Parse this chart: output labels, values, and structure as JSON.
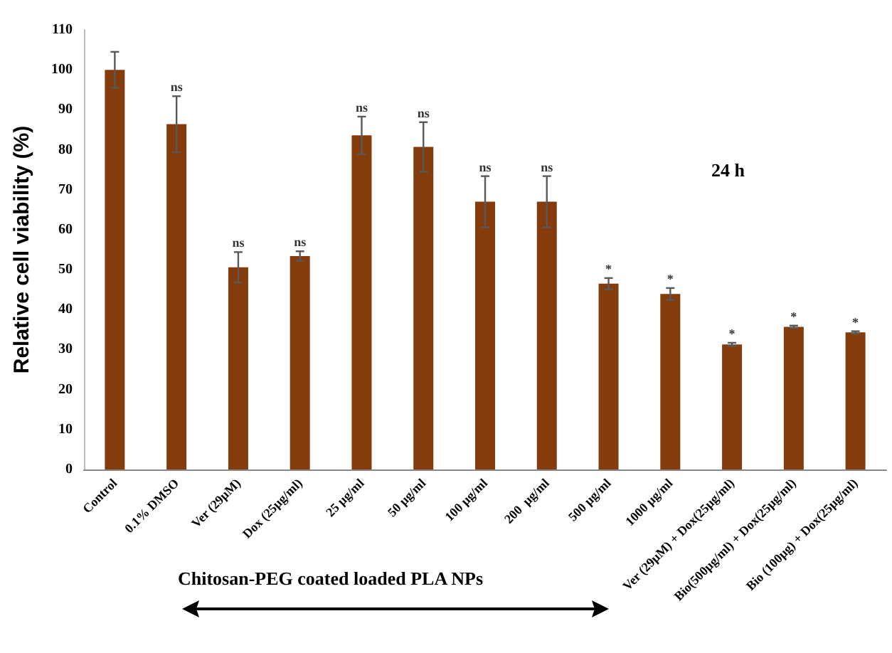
{
  "chart_data": {
    "type": "bar",
    "ylabel": "Relative cell viability (%)",
    "xlabel": "Chitosan-PEG coated loaded PLA NPs",
    "categories": [
      "Control",
      "0.1% DMSO",
      "Ver (29µM)",
      "Dox (25µg/ml)",
      "25 µg/ml",
      "50 µg/ml",
      "100 µg/ml",
      "200  µg/ml",
      "500 µg/ml",
      "1000 µg/ml",
      "Ver (29µM) + Dox(25µg/ml)",
      "Bio(500µg/ml) + Dox(25µg/ml)",
      "Bio (100µg) + Dox(25µg/ml)"
    ],
    "values": [
      100,
      86.4,
      50.6,
      53.4,
      83.6,
      80.7,
      67.0,
      67.0,
      46.5,
      43.9,
      31.3,
      35.7,
      34.3
    ],
    "errors": [
      4.5,
      7,
      3.8,
      1.2,
      4.7,
      6.2,
      6.4,
      6.4,
      1.4,
      1.5,
      0.4,
      0.3,
      0.3
    ],
    "color": "#843c0c",
    "ylim": [
      0,
      110
    ],
    "yticks": [
      0,
      10,
      20,
      30,
      40,
      50,
      60,
      70,
      80,
      90,
      100,
      110
    ],
    "annotations": [
      "24 h",
      {
        "text": "ns",
        "x": "0.1% DMSO",
        "y": 93.4
      },
      {
        "text": "ns",
        "x": "Ver (29µM)",
        "y": 54.4
      },
      {
        "text": "ns",
        "x": "Dox (25µg/ml)",
        "y": 54.6
      },
      {
        "text": "ns",
        "x": "25 µg/ml",
        "y": 88.3
      },
      {
        "text": "ns",
        "x": "50 µg/ml",
        "y": 86.9
      },
      {
        "text": "ns",
        "x": "100 µg/ml",
        "y": 73.4
      },
      {
        "text": "ns",
        "x": "200  µg/ml",
        "y": 73.4
      },
      {
        "text": "*",
        "x": "500 µg/ml",
        "y": 47.9
      },
      {
        "text": "*",
        "x": "1000 µg/ml",
        "y": 45.4
      },
      {
        "text": "*",
        "x": "Ver (29µM) + Dox(25µg/ml)",
        "y": 31.7
      },
      {
        "text": "*",
        "x": "Bio(500µg/ml) + Dox(25µg/ml)",
        "y": 36.0
      },
      {
        "text": "*",
        "x": "Bio (100µg) + Dox(25µg/ml)",
        "y": 34.6
      }
    ],
    "grid": false
  }
}
